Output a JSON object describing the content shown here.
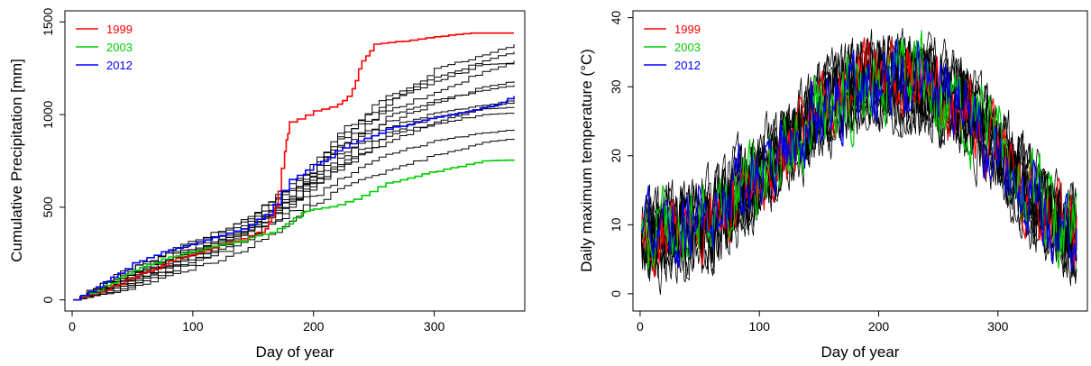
{
  "chart_data": [
    {
      "type": "line",
      "title": "",
      "xlabel": "Day of year",
      "ylabel": "Cumulative Precipitation [mm]",
      "xlim": [
        0,
        366
      ],
      "ylim": [
        0,
        1500
      ],
      "xticks": [
        "0",
        "100",
        "200",
        "300"
      ],
      "yticks": [
        "0",
        "500",
        "1000",
        "1500"
      ],
      "grid": false,
      "legend_position": "top-left",
      "series": [
        {
          "name": "1999",
          "color": "#ff0000",
          "x": [
            1,
            20,
            50,
            80,
            110,
            140,
            160,
            168,
            176,
            180,
            200,
            220,
            232,
            240,
            250,
            280,
            300,
            330,
            366
          ],
          "y": [
            0,
            40,
            120,
            210,
            270,
            330,
            380,
            500,
            800,
            960,
            1020,
            1050,
            1130,
            1290,
            1380,
            1400,
            1420,
            1440,
            1440
          ]
        },
        {
          "name": "2003",
          "color": "#00cc00",
          "x": [
            1,
            20,
            50,
            80,
            110,
            140,
            170,
            190,
            200,
            220,
            240,
            260,
            290,
            320,
            340,
            366
          ],
          "y": [
            0,
            50,
            160,
            230,
            280,
            320,
            380,
            470,
            490,
            510,
            560,
            630,
            680,
            720,
            750,
            755
          ]
        },
        {
          "name": "2012",
          "color": "#0000ff",
          "x": [
            1,
            20,
            50,
            80,
            110,
            140,
            160,
            180,
            200,
            230,
            260,
            290,
            320,
            350,
            366
          ],
          "y": [
            0,
            70,
            200,
            270,
            320,
            380,
            460,
            650,
            730,
            840,
            920,
            970,
            1010,
            1050,
            1100
          ]
        },
        {
          "x": [
            1,
            40,
            90,
            140,
            180,
            220,
            260,
            300,
            340,
            366
          ],
          "y": [
            0,
            150,
            280,
            420,
            600,
            820,
            1050,
            1250,
            1320,
            1380
          ]
        },
        {
          "x": [
            1,
            40,
            90,
            140,
            180,
            220,
            260,
            300,
            340,
            366
          ],
          "y": [
            0,
            120,
            250,
            370,
            560,
            900,
            1100,
            1200,
            1290,
            1340
          ]
        },
        {
          "x": [
            1,
            40,
            90,
            140,
            180,
            220,
            260,
            300,
            340,
            366
          ],
          "y": [
            0,
            90,
            210,
            360,
            520,
            830,
            960,
            1060,
            1150,
            1180
          ]
        },
        {
          "x": [
            1,
            40,
            90,
            140,
            180,
            220,
            260,
            300,
            340,
            366
          ],
          "y": [
            0,
            110,
            230,
            380,
            540,
            880,
            1020,
            1120,
            1230,
            1290
          ]
        },
        {
          "x": [
            1,
            40,
            90,
            140,
            180,
            220,
            260,
            300,
            340,
            366
          ],
          "y": [
            0,
            60,
            180,
            300,
            500,
            760,
            930,
            1010,
            1050,
            1080
          ]
        },
        {
          "x": [
            1,
            40,
            90,
            140,
            180,
            220,
            260,
            300,
            340,
            366
          ],
          "y": [
            0,
            100,
            260,
            400,
            590,
            700,
            880,
            960,
            1040,
            1070
          ]
        },
        {
          "x": [
            1,
            40,
            90,
            140,
            180,
            220,
            260,
            300,
            340,
            366
          ],
          "y": [
            0,
            70,
            190,
            320,
            470,
            650,
            780,
            860,
            900,
            920
          ]
        },
        {
          "x": [
            1,
            40,
            90,
            140,
            180,
            220,
            260,
            300,
            340,
            366
          ],
          "y": [
            0,
            50,
            150,
            260,
            420,
            600,
            700,
            780,
            850,
            870
          ]
        },
        {
          "x": [
            1,
            40,
            90,
            140,
            180,
            220,
            260,
            300,
            340,
            366
          ],
          "y": [
            0,
            130,
            240,
            360,
            560,
            780,
            990,
            1080,
            1130,
            1160
          ]
        },
        {
          "x": [
            1,
            40,
            90,
            140,
            180,
            220,
            260,
            300,
            340,
            366
          ],
          "y": [
            0,
            80,
            200,
            340,
            530,
            730,
            900,
            990,
            1030,
            1040
          ]
        },
        {
          "x": [
            1,
            40,
            90,
            140,
            180,
            220,
            260,
            300,
            340,
            366
          ],
          "y": [
            0,
            140,
            300,
            420,
            610,
            860,
            1080,
            1180,
            1270,
            1280
          ]
        },
        {
          "x": [
            1,
            40,
            90,
            140,
            180,
            220,
            260,
            300,
            340,
            366
          ],
          "y": [
            0,
            95,
            220,
            350,
            510,
            720,
            850,
            950,
            1000,
            1010
          ]
        }
      ]
    },
    {
      "type": "line",
      "title": "",
      "xlabel": "Day of year",
      "ylabel": "Daily maximum temperature (°C)",
      "xlim": [
        0,
        366
      ],
      "ylim": [
        -2,
        40
      ],
      "xticks": [
        "0",
        "100",
        "200",
        "300"
      ],
      "yticks": [
        "0",
        "10",
        "20",
        "30",
        "40"
      ],
      "grid": false,
      "legend_position": "top-left",
      "mean_curve": {
        "x": [
          1,
          30,
          60,
          90,
          120,
          150,
          180,
          210,
          240,
          270,
          300,
          330,
          366
        ],
        "y": [
          8,
          9,
          11,
          15,
          21,
          26,
          30,
          31,
          30,
          27,
          21,
          14,
          8
        ]
      },
      "series": [
        {
          "name": "1999",
          "color": "#ff0000",
          "amplitude": 4
        },
        {
          "name": "2003",
          "color": "#00cc00",
          "amplitude": 5
        },
        {
          "name": "2012",
          "color": "#0000ff",
          "amplitude": 4.5
        }
      ],
      "background_series_count": 12,
      "background_color": "#000000"
    }
  ]
}
